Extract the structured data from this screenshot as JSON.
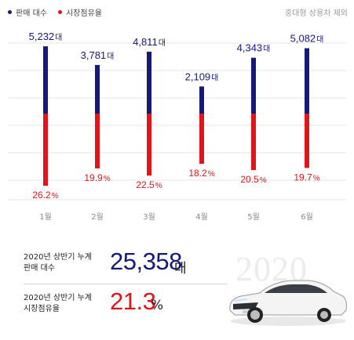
{
  "legend": {
    "sales_label": "판매 대수",
    "share_label": "시장점유율"
  },
  "note": "중대형 상용차 제외",
  "colors": {
    "sales": "#15197a",
    "share": "#e0141b",
    "grid": "#e6e6e6",
    "month": "#8a8a8a"
  },
  "chart_data": {
    "type": "bar",
    "categories": [
      "1월",
      "2월",
      "3월",
      "4월",
      "5월",
      "6월"
    ],
    "series": [
      {
        "name": "판매 대수",
        "values": [
          5232,
          3781,
          4811,
          2109,
          4343,
          5082
        ],
        "unit": "대",
        "labels": [
          "5,232",
          "3,781",
          "4,811",
          "2,109",
          "4,343",
          "5,082"
        ]
      },
      {
        "name": "시장점유율",
        "values": [
          26.2,
          19.9,
          22.5,
          18.2,
          20.5,
          19.7
        ],
        "unit": "%",
        "labels": [
          "26.2",
          "19.9",
          "22.5",
          "18.2",
          "20.5",
          "19.7"
        ]
      }
    ],
    "legend": "top-left",
    "grid": true
  },
  "summary": {
    "sales_line1": "2020년 상반기 누계",
    "sales_line2": "판매 대수",
    "sales_total": "25,358",
    "sales_unit": "대",
    "share_line1": "2020년 상반기 누계",
    "share_line2": "시장점유율",
    "share_total": "21.3",
    "share_unit": "%"
  },
  "watermark": "2020"
}
